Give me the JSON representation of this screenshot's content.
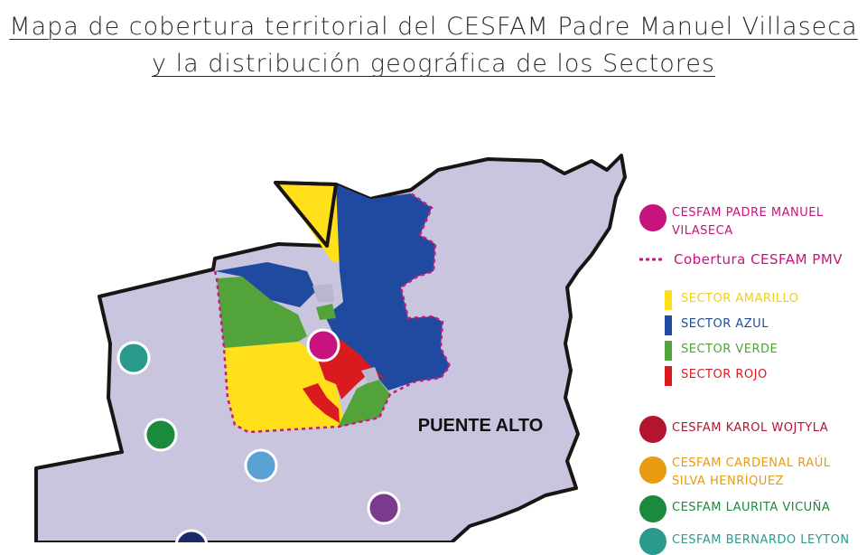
{
  "title": {
    "line1": "Mapa de cobertura territorial del CESFAM Padre Manuel Villaseca",
    "line2": "y la distribución geográfica de los Sectores"
  },
  "map": {
    "area_label": "PUENTE ALTO",
    "colors": {
      "region_fill": "#c9c5df",
      "border": "#1a1414",
      "coverage_line": "#c8197f",
      "sector_amarillo": "#ffe01a",
      "sector_azul": "#1f4aa0",
      "sector_verde": "#52a43a",
      "sector_rojo": "#d91a1f"
    }
  },
  "legend": {
    "cesfam_pmv": {
      "label_line1": "CESFAM PADRE MANUEL",
      "label_line2": "VILASECA",
      "color": "#c7137e"
    },
    "coverage": {
      "label": "Cobertura CESFAM PMV",
      "color": "#c7137e"
    },
    "sectors": [
      {
        "label": "SECTOR AMARILLO",
        "color": "#ffe01a"
      },
      {
        "label": "SECTOR AZUL",
        "color": "#1f4aa0"
      },
      {
        "label": "SECTOR VERDE",
        "color": "#52a43a"
      },
      {
        "label": "SECTOR ROJO",
        "color": "#d91a1f"
      }
    ],
    "other_cesfam": [
      {
        "label_line1": "CESFAM KAROL WOJTYLA",
        "label_line2": "",
        "color": "#b5142e"
      },
      {
        "label_line1": "CESFAM CARDENAL RAÚL",
        "label_line2": "SILVA HENRÍQUEZ",
        "color": "#e89a10"
      },
      {
        "label_line1": "CESFAM LAURITA VICUÑA",
        "label_line2": "",
        "color": "#1a8a3c"
      },
      {
        "label_line1": "CESFAM BERNARDO LEYTON",
        "label_line2": "",
        "color": "#2a9a8c"
      }
    ]
  },
  "markers": [
    {
      "name": "cesfam-pmv-marker",
      "color": "#c7137e"
    },
    {
      "name": "cesfam-bernardo-leyton-marker",
      "color": "#2a9a8c"
    },
    {
      "name": "cesfam-laurita-vicuna-marker",
      "color": "#1a8a3c"
    },
    {
      "name": "light-blue-cesfam-marker",
      "color": "#5aa2d4"
    },
    {
      "name": "purple-cesfam-marker",
      "color": "#7a3b8f"
    },
    {
      "name": "navy-cesfam-marker",
      "color": "#1b2a6b"
    }
  ]
}
